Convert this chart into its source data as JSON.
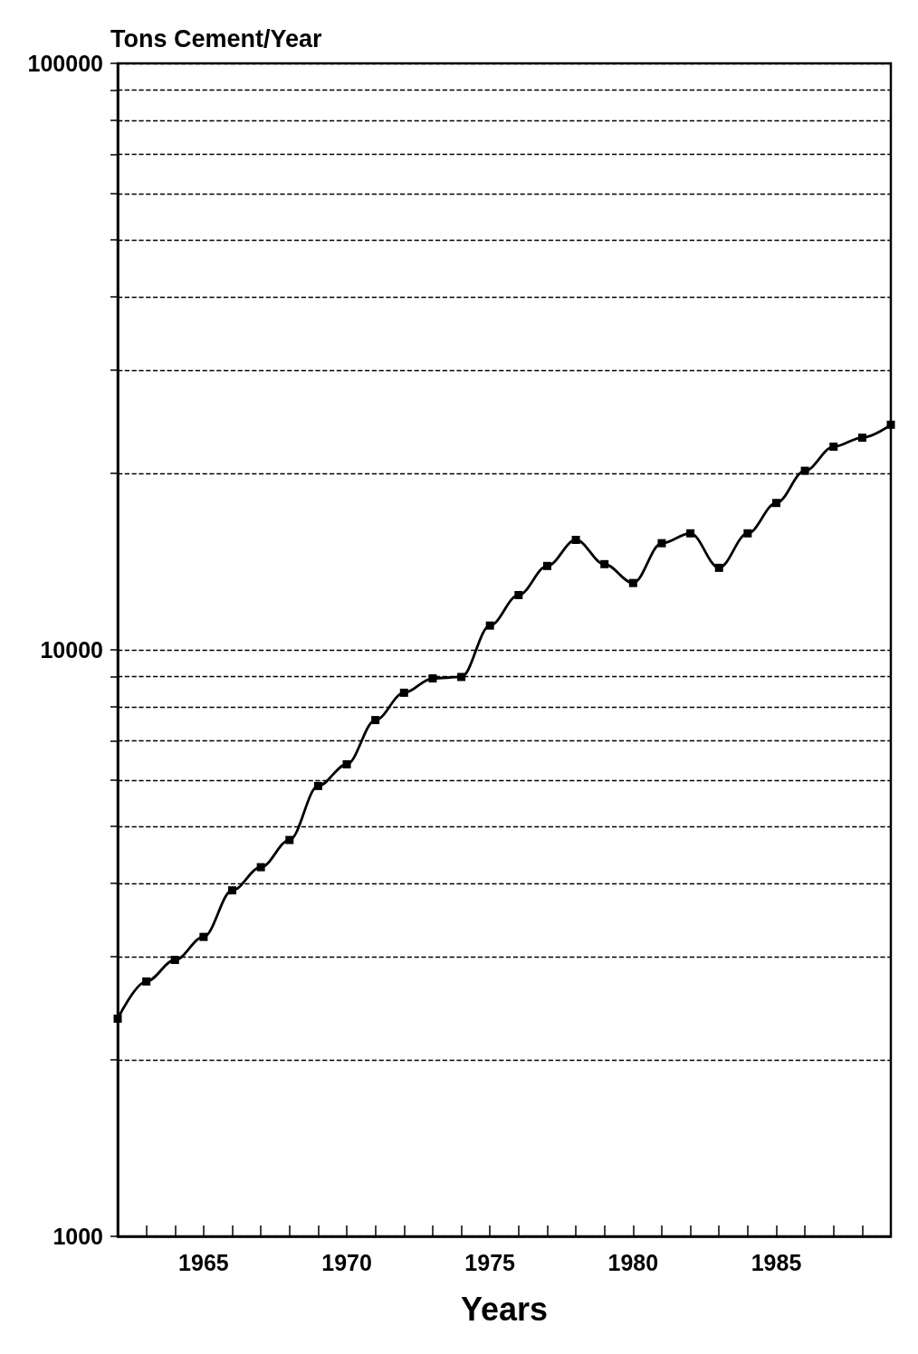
{
  "chart_data": {
    "type": "line",
    "ylabel": "Tons Cement/Year",
    "xlabel": "Years",
    "x": [
      1962,
      1963,
      1964,
      1965,
      1966,
      1967,
      1968,
      1969,
      1970,
      1971,
      1972,
      1973,
      1974,
      1975,
      1976,
      1977,
      1978,
      1979,
      1980,
      1981,
      1982,
      1983,
      1984,
      1985,
      1986,
      1987,
      1988,
      1989
    ],
    "series": [
      {
        "color": "#000000",
        "values": [
          2350,
          2720,
          2960,
          3240,
          3890,
          4260,
          4740,
          5860,
          6380,
          7590,
          8450,
          8940,
          8990,
          11000,
          12400,
          13900,
          15400,
          14000,
          13000,
          15200,
          15800,
          13800,
          15800,
          17800,
          20200,
          22200,
          23000,
          24200
        ]
      }
    ],
    "xlim": [
      1962,
      1989
    ],
    "xticks": [
      {
        "value": 1962,
        "label": null
      },
      {
        "value": 1963,
        "label": null
      },
      {
        "value": 1964,
        "label": null
      },
      1965,
      {
        "value": 1966,
        "label": null
      },
      {
        "value": 1967,
        "label": null
      },
      {
        "value": 1968,
        "label": null
      },
      {
        "value": 1969,
        "label": null
      },
      1970,
      {
        "value": 1971,
        "label": null
      },
      {
        "value": 1972,
        "label": null
      },
      {
        "value": 1973,
        "label": null
      },
      {
        "value": 1974,
        "label": null
      },
      1975,
      {
        "value": 1976,
        "label": null
      },
      {
        "value": 1977,
        "label": null
      },
      {
        "value": 1978,
        "label": null
      },
      {
        "value": 1979,
        "label": null
      },
      1980,
      {
        "value": 1981,
        "label": null
      },
      {
        "value": 1982,
        "label": null
      },
      {
        "value": 1983,
        "label": null
      },
      {
        "value": 1984,
        "label": null
      },
      1985,
      {
        "value": 1986,
        "label": null
      },
      {
        "value": 1987,
        "label": null
      },
      {
        "value": 1988,
        "label": null
      },
      {
        "value": 1989,
        "label": null
      }
    ],
    "ylim": [
      1000,
      100000
    ],
    "yticks": [
      1000,
      {
        "value": 2000,
        "label": null
      },
      {
        "value": 3000,
        "label": null
      },
      {
        "value": 4000,
        "label": null
      },
      {
        "value": 5000,
        "label": null
      },
      {
        "value": 6000,
        "label": null
      },
      {
        "value": 7000,
        "label": null
      },
      {
        "value": 8000,
        "label": null
      },
      {
        "value": 9000,
        "label": null
      },
      10000,
      {
        "value": 20000,
        "label": null
      },
      {
        "value": 30000,
        "label": null
      },
      {
        "value": 40000,
        "label": null
      },
      {
        "value": 50000,
        "label": null
      },
      {
        "value": 60000,
        "label": null
      },
      {
        "value": 70000,
        "label": null
      },
      {
        "value": 80000,
        "label": null
      },
      {
        "value": 90000,
        "label": null
      },
      100000
    ],
    "log": "y",
    "grid": "y",
    "marker": "square",
    "line_style": "solid"
  }
}
